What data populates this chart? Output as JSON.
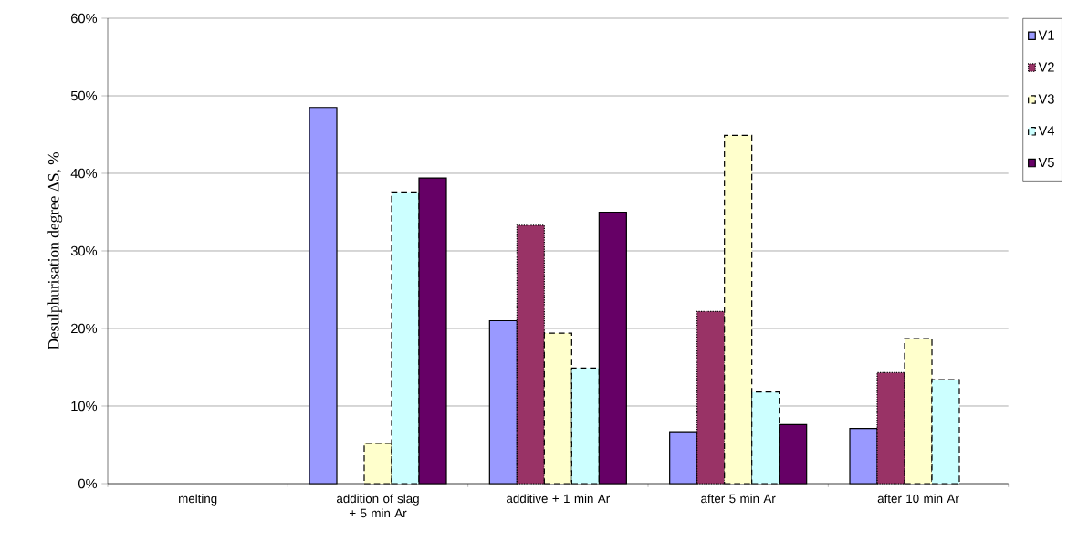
{
  "chart_data": {
    "type": "bar",
    "ylabel": "Desulphurisation degree ΔS, %",
    "categories": [
      "melting",
      "addition of slag + 5 min Ar",
      "additive + 1 min Ar",
      "after 5 min Ar",
      "after 10 min Ar"
    ],
    "series": [
      {
        "name": "V1",
        "color": "#9999ff",
        "line_style": "solid",
        "values": [
          null,
          48.5,
          21.0,
          6.7,
          7.1
        ]
      },
      {
        "name": "V2",
        "color": "#993366",
        "line_style": "dotted",
        "values": [
          null,
          null,
          33.3,
          22.2,
          14.3
        ]
      },
      {
        "name": "V3",
        "color": "#ffffcc",
        "line_style": "dashed",
        "values": [
          null,
          5.2,
          19.4,
          44.9,
          18.7
        ]
      },
      {
        "name": "V4",
        "color": "#ccffff",
        "line_style": "dashed",
        "values": [
          null,
          37.6,
          14.9,
          11.8,
          13.4
        ]
      },
      {
        "name": "V5",
        "color": "#660066",
        "line_style": "solid",
        "values": [
          null,
          39.4,
          35.0,
          7.6,
          null
        ]
      }
    ],
    "ylim": [
      0,
      60
    ],
    "yticks": [
      {
        "value": 0,
        "label": "0%"
      },
      {
        "value": 10,
        "label": "10%"
      },
      {
        "value": 20,
        "label": "20%"
      },
      {
        "value": 30,
        "label": "30%"
      },
      {
        "value": 40,
        "label": "40%"
      },
      {
        "value": 50,
        "label": "50%"
      },
      {
        "value": 60,
        "label": "60%"
      }
    ],
    "grid": "y",
    "legend": "right"
  }
}
